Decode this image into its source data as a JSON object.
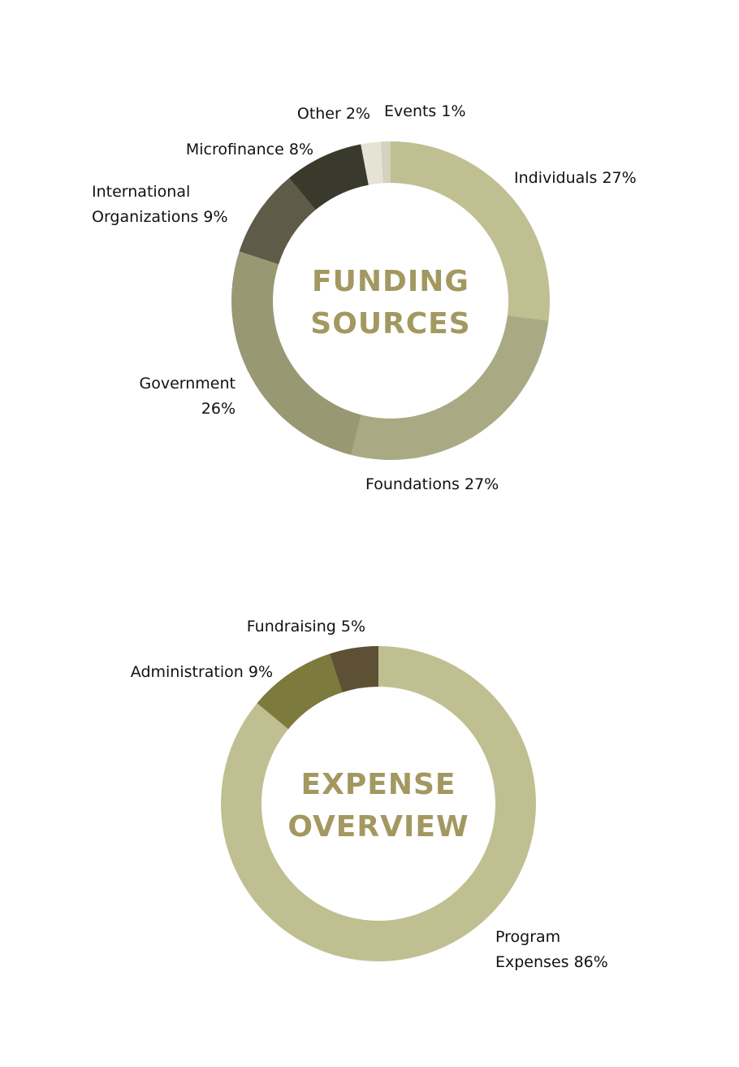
{
  "chart_data": [
    {
      "type": "pie",
      "title_lines": [
        "FUNDING",
        "SOURCES"
      ],
      "title_color": "#A39860",
      "slices": [
        {
          "label_lines": [
            "Individuals 27%"
          ],
          "value": 27,
          "color": "#C0BF92"
        },
        {
          "label_lines": [
            "Foundations 27%"
          ],
          "value": 27,
          "color": "#A9AA84"
        },
        {
          "label_lines": [
            "Government",
            "26%"
          ],
          "value": 26,
          "color": "#989873"
        },
        {
          "label_lines": [
            "International",
            "Organizations 9%"
          ],
          "value": 9,
          "color": "#5E5C48"
        },
        {
          "label_lines": [
            "Microfinance 8%"
          ],
          "value": 8,
          "color": "#3A3A2C"
        },
        {
          "label_lines": [
            "Other 2%"
          ],
          "value": 2,
          "color": "#E4E3D4"
        },
        {
          "label_lines": [
            "Events 1%"
          ],
          "value": 1,
          "color": "#D3D2BC"
        }
      ]
    },
    {
      "type": "pie",
      "title_lines": [
        "EXPENSE",
        "OVERVIEW"
      ],
      "title_color": "#A39860",
      "slices": [
        {
          "label_lines": [
            "Program",
            "Expenses 86%"
          ],
          "value": 86,
          "color": "#C0BF92"
        },
        {
          "label_lines": [
            "Administration 9%"
          ],
          "value": 9,
          "color": "#7C7A3C"
        },
        {
          "label_lines": [
            "Fundraising 5%"
          ],
          "value": 5,
          "color": "#5E5035"
        }
      ]
    }
  ]
}
